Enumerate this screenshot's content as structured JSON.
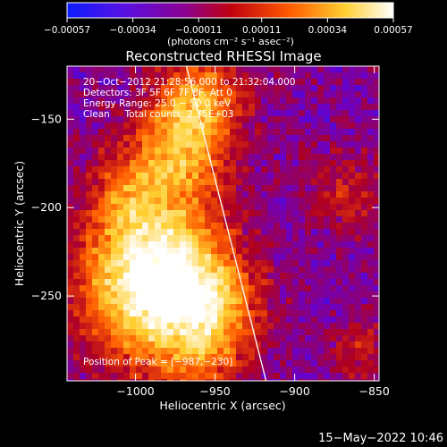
{
  "chart_data": {
    "type": "heatmap",
    "title": "Reconstructed RHESSI Image",
    "xlabel": "Heliocentric X (arcsec)",
    "ylabel": "Heliocentric Y (arcsec)",
    "xlim": [
      -1043,
      -847
    ],
    "ylim": [
      -298,
      -120
    ],
    "x_ticks": [
      -1000,
      -950,
      -900,
      -850
    ],
    "y_ticks": [
      -150,
      -200,
      -250
    ],
    "x_tick_labels": [
      "−1000",
      "−950",
      "−900",
      "−850"
    ],
    "y_tick_labels": [
      "−150",
      "−200",
      "−250"
    ],
    "colorbar": {
      "range": [
        -0.00057,
        0.00057
      ],
      "ticks": [
        -0.00057,
        -0.00034,
        -0.00011,
        0.00011,
        0.00034,
        0.00057
      ],
      "tick_labels": [
        "−0.00057",
        "−0.00034",
        "−0.00011",
        "0.00011",
        "0.00034",
        "0.00057"
      ],
      "units_label": "(photons cm⁻² s⁻¹ asec⁻²)",
      "colors": [
        "#0b1cff",
        "#6a00c8",
        "#b00020",
        "#ff5a00",
        "#ffcf30",
        "#ffffff"
      ]
    },
    "annotations": [
      "20−Oct−2012 21:28:56.000 to 21:32:04.000",
      "Detectors: 3F 5F 6F 7F 8F, Att 0",
      "Energy Range: 25.0 − 50.0 keV",
      "Clean     Total counts: 2.75E+03",
      "Position of Peak = [−987,−230]"
    ],
    "limb_line": {
      "x": [
        -968,
        -918
      ],
      "y": [
        -120,
        -298
      ]
    },
    "peak": {
      "x": -987,
      "y": -230
    },
    "timestamp": "15−May−2022 10:46"
  }
}
